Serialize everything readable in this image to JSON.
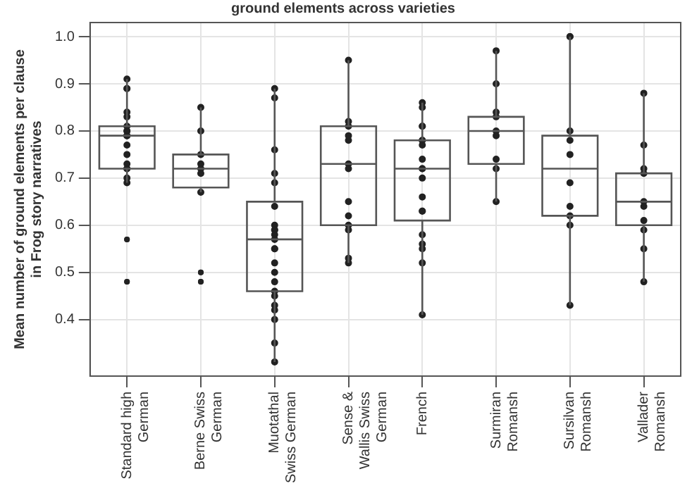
{
  "chart_data": {
    "type": "box",
    "title": "ground elements across varieties",
    "ylabel": "Mean number of ground elements per clause in Frog story narratives",
    "categories": [
      "Standard high German",
      "Berne Swiss German",
      "Muotathal Swiss German",
      "Sense & Wallis Swiss German",
      "French",
      "Surmiran Romansh",
      "Sursilvan Romansh",
      "Vallader Romansh"
    ],
    "boxes": [
      {
        "low": 0.69,
        "q1": 0.72,
        "median": 0.79,
        "q3": 0.81,
        "high": 0.91,
        "outliers": [
          0.57,
          0.57,
          0.48,
          0.48
        ]
      },
      {
        "low": 0.67,
        "q1": 0.68,
        "median": 0.72,
        "q3": 0.75,
        "high": 0.85,
        "outliers": [
          0.5,
          0.5,
          0.48,
          0.48
        ]
      },
      {
        "low": 0.31,
        "q1": 0.46,
        "median": 0.57,
        "q3": 0.65,
        "high": 0.89
      },
      {
        "low": 0.52,
        "q1": 0.6,
        "median": 0.73,
        "q3": 0.81,
        "high": 0.95
      },
      {
        "low": 0.41,
        "q1": 0.61,
        "median": 0.72,
        "q3": 0.78,
        "high": 0.86
      },
      {
        "low": 0.65,
        "q1": 0.73,
        "median": 0.8,
        "q3": 0.83,
        "high": 0.97
      },
      {
        "low": 0.43,
        "q1": 0.62,
        "median": 0.72,
        "q3": 0.79,
        "high": 1.0
      },
      {
        "low": 0.48,
        "q1": 0.6,
        "median": 0.65,
        "q3": 0.71,
        "high": 0.88
      }
    ],
    "series": [
      {
        "type": "scatter",
        "color": "#222222",
        "x": [
          "Standard high German",
          "Standard high German",
          "Standard high German",
          "Standard high German",
          "Standard high German",
          "Standard high German",
          "Standard high German",
          "Standard high German",
          "Standard high German",
          "Standard high German",
          "Standard high German",
          "Standard high German",
          "Standard high German",
          "Standard high German",
          "Standard high German",
          "Standard high German",
          "Standard high German",
          "Berne Swiss German",
          "Berne Swiss German",
          "Berne Swiss German",
          "Berne Swiss German",
          "Berne Swiss German",
          "Berne Swiss German",
          "Berne Swiss German",
          "Muotathal Swiss German",
          "Muotathal Swiss German",
          "Muotathal Swiss German",
          "Muotathal Swiss German",
          "Muotathal Swiss German",
          "Muotathal Swiss German",
          "Muotathal Swiss German",
          "Muotathal Swiss German",
          "Muotathal Swiss German",
          "Muotathal Swiss German",
          "Muotathal Swiss German",
          "Muotathal Swiss German",
          "Muotathal Swiss German",
          "Muotathal Swiss German",
          "Muotathal Swiss German",
          "Muotathal Swiss German",
          "Muotathal Swiss German",
          "Muotathal Swiss German",
          "Muotathal Swiss German",
          "Muotathal Swiss German",
          "Muotathal Swiss German",
          "Muotathal Swiss German",
          "Muotathal Swiss German",
          "Sense & Wallis Swiss German",
          "Sense & Wallis Swiss German",
          "Sense & Wallis Swiss German",
          "Sense & Wallis Swiss German",
          "Sense & Wallis Swiss German",
          "Sense & Wallis Swiss German",
          "Sense & Wallis Swiss German",
          "Sense & Wallis Swiss German",
          "Sense & Wallis Swiss German",
          "Sense & Wallis Swiss German",
          "Sense & Wallis Swiss German",
          "Sense & Wallis Swiss German",
          "Sense & Wallis Swiss German",
          "French",
          "French",
          "French",
          "French",
          "French",
          "French",
          "French",
          "French",
          "French",
          "French",
          "French",
          "French",
          "French",
          "French",
          "French",
          "French",
          "French",
          "French",
          "French",
          "Surmiran Romansh",
          "Surmiran Romansh",
          "Surmiran Romansh",
          "Surmiran Romansh",
          "Surmiran Romansh",
          "Surmiran Romansh",
          "Surmiran Romansh",
          "Surmiran Romansh",
          "Surmiran Romansh",
          "Sursilvan Romansh",
          "Sursilvan Romansh",
          "Sursilvan Romansh",
          "Sursilvan Romansh",
          "Sursilvan Romansh",
          "Sursilvan Romansh",
          "Sursilvan Romansh",
          "Sursilvan Romansh",
          "Sursilvan Romansh",
          "Sursilvan Romansh",
          "Vallader Romansh",
          "Vallader Romansh",
          "Vallader Romansh",
          "Vallader Romansh",
          "Vallader Romansh",
          "Vallader Romansh",
          "Vallader Romansh",
          "Vallader Romansh",
          "Vallader Romansh",
          "Vallader Romansh"
        ],
        "values": [
          0.91,
          0.89,
          0.89,
          0.84,
          0.83,
          0.81,
          0.8,
          0.8,
          0.79,
          0.79,
          0.77,
          0.75,
          0.73,
          0.72,
          0.72,
          0.7,
          0.69,
          0.85,
          0.8,
          0.75,
          0.73,
          0.72,
          0.71,
          0.67,
          0.89,
          0.87,
          0.76,
          0.71,
          0.69,
          0.64,
          0.6,
          0.59,
          0.59,
          0.58,
          0.57,
          0.55,
          0.55,
          0.52,
          0.5,
          0.48,
          0.46,
          0.45,
          0.43,
          0.42,
          0.4,
          0.35,
          0.31,
          0.95,
          0.82,
          0.81,
          0.79,
          0.78,
          0.73,
          0.72,
          0.65,
          0.62,
          0.6,
          0.59,
          0.53,
          0.52,
          0.86,
          0.85,
          0.81,
          0.81,
          0.78,
          0.78,
          0.77,
          0.74,
          0.72,
          0.72,
          0.7,
          0.66,
          0.63,
          0.63,
          0.58,
          0.56,
          0.55,
          0.52,
          0.41,
          0.97,
          0.9,
          0.84,
          0.83,
          0.8,
          0.79,
          0.74,
          0.72,
          0.65,
          1.0,
          1.0,
          0.8,
          0.78,
          0.75,
          0.69,
          0.64,
          0.62,
          0.6,
          0.43,
          0.88,
          0.77,
          0.72,
          0.71,
          0.65,
          0.64,
          0.61,
          0.59,
          0.55,
          0.48
        ]
      }
    ],
    "ylim": [
      0.28,
      1.03
    ],
    "yticks": [
      0.4,
      0.5,
      0.6,
      0.7,
      0.8,
      0.9,
      {
        "value": 1,
        "label": "1.0"
      }
    ],
    "grid": true,
    "legend": false,
    "marker": "circle"
  }
}
